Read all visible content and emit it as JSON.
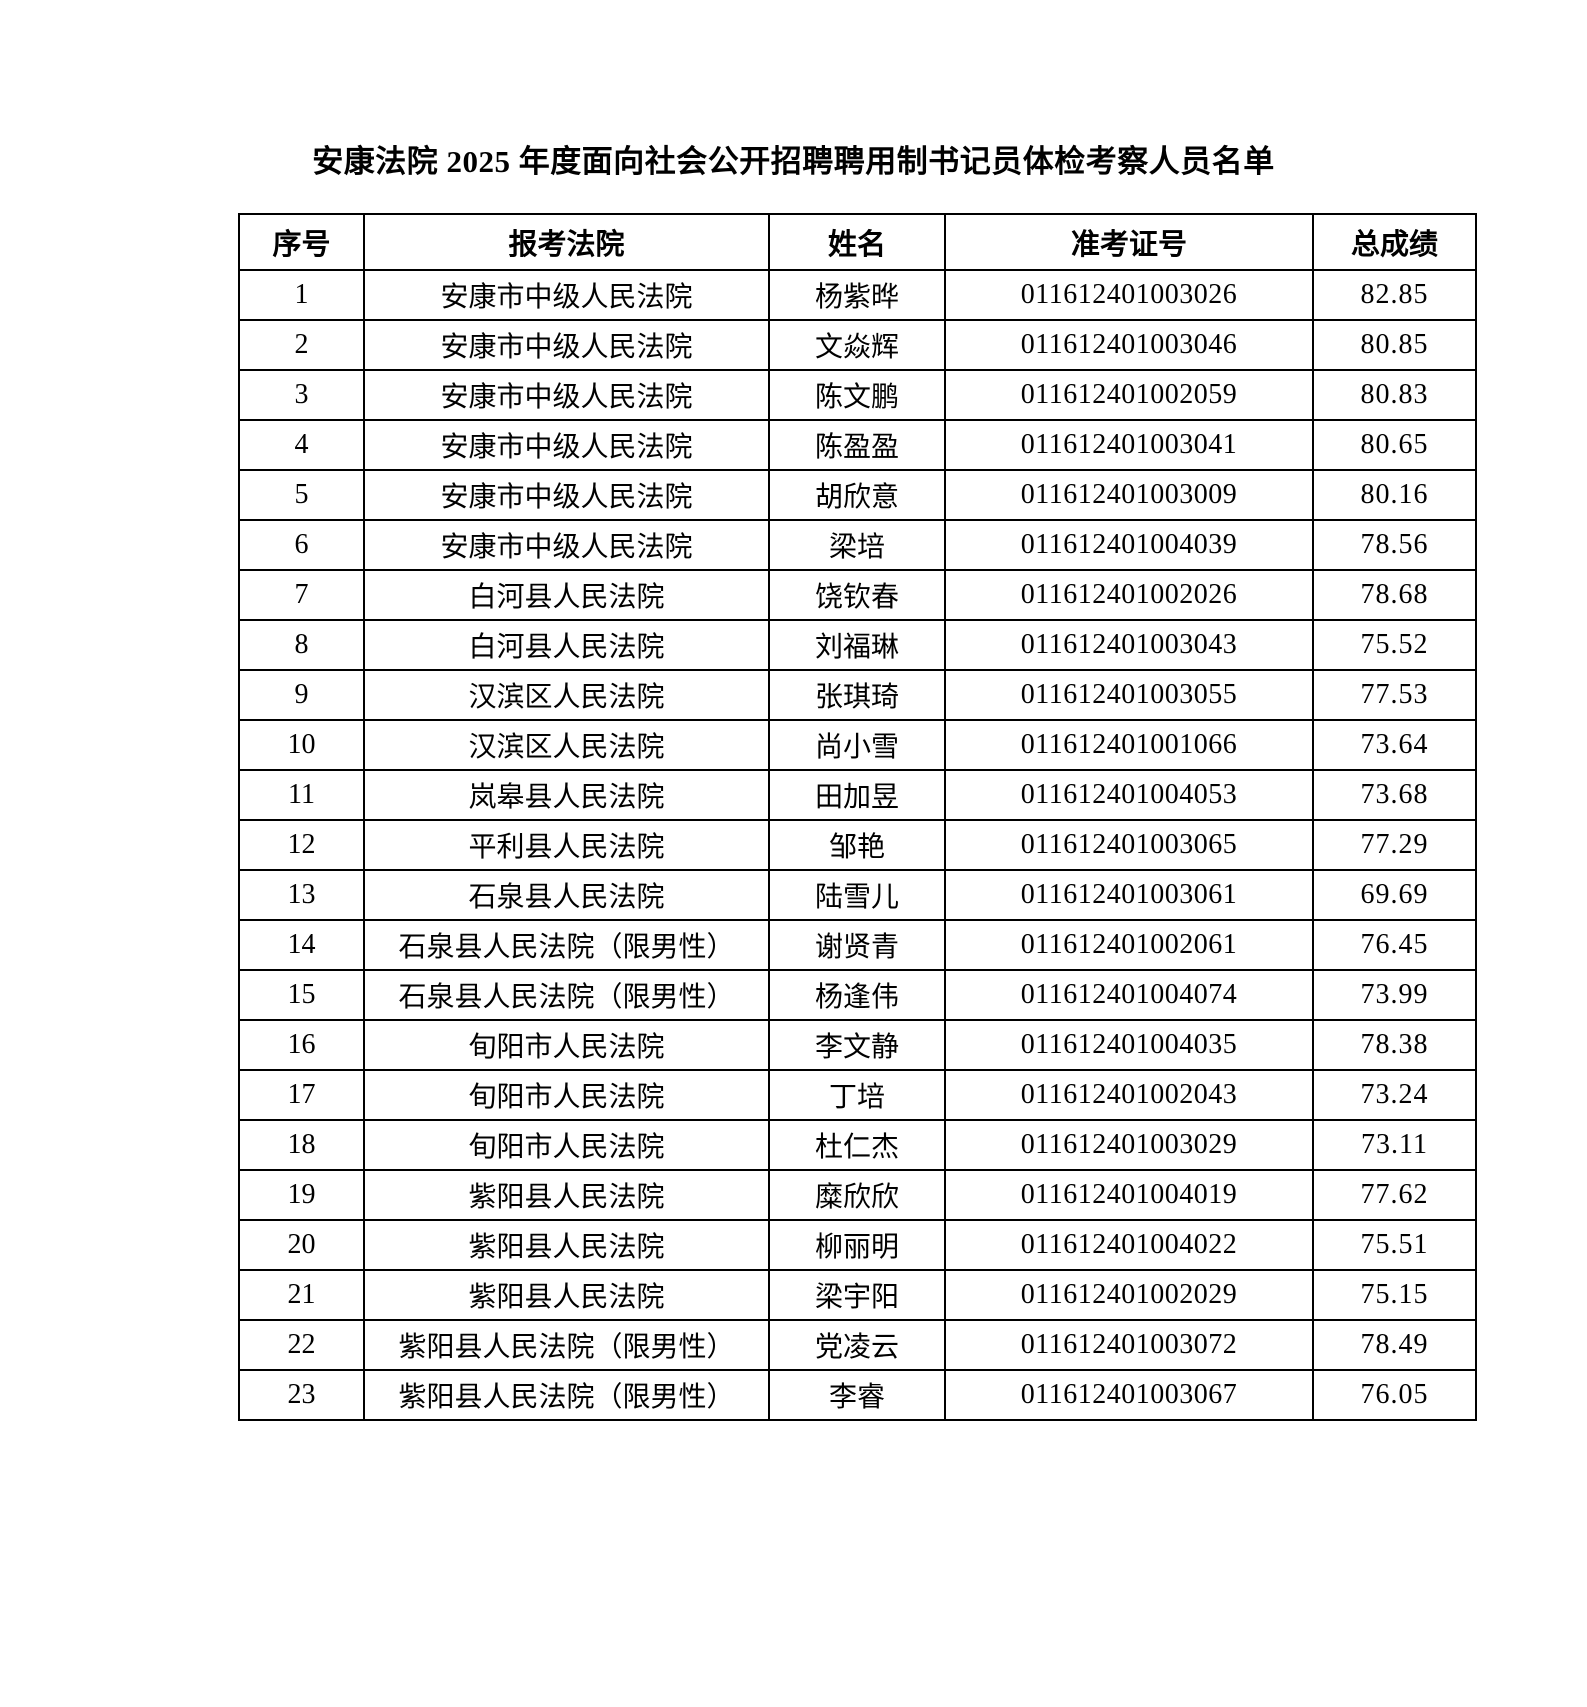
{
  "title": "安康法院 2025 年度面向社会公开招聘聘用制书记员体检考察人员名单",
  "table": {
    "headers": [
      "序号",
      "报考法院",
      "姓名",
      "准考证号",
      "总成绩"
    ],
    "rows": [
      [
        "1",
        "安康市中级人民法院",
        "杨紫晔",
        "011612401003026",
        "82.85"
      ],
      [
        "2",
        "安康市中级人民法院",
        "文焱辉",
        "011612401003046",
        "80.85"
      ],
      [
        "3",
        "安康市中级人民法院",
        "陈文鹏",
        "011612401002059",
        "80.83"
      ],
      [
        "4",
        "安康市中级人民法院",
        "陈盈盈",
        "011612401003041",
        "80.65"
      ],
      [
        "5",
        "安康市中级人民法院",
        "胡欣意",
        "011612401003009",
        "80.16"
      ],
      [
        "6",
        "安康市中级人民法院",
        "梁培",
        "011612401004039",
        "78.56"
      ],
      [
        "7",
        "白河县人民法院",
        "饶钦春",
        "011612401002026",
        "78.68"
      ],
      [
        "8",
        "白河县人民法院",
        "刘福琳",
        "011612401003043",
        "75.52"
      ],
      [
        "9",
        "汉滨区人民法院",
        "张琪琦",
        "011612401003055",
        "77.53"
      ],
      [
        "10",
        "汉滨区人民法院",
        "尚小雪",
        "011612401001066",
        "73.64"
      ],
      [
        "11",
        "岚皋县人民法院",
        "田加昱",
        "011612401004053",
        "73.68"
      ],
      [
        "12",
        "平利县人民法院",
        "邹艳",
        "011612401003065",
        "77.29"
      ],
      [
        "13",
        "石泉县人民法院",
        "陆雪儿",
        "011612401003061",
        "69.69"
      ],
      [
        "14",
        "石泉县人民法院（限男性）",
        "谢贤青",
        "011612401002061",
        "76.45"
      ],
      [
        "15",
        "石泉县人民法院（限男性）",
        "杨逢伟",
        "011612401004074",
        "73.99"
      ],
      [
        "16",
        "旬阳市人民法院",
        "李文静",
        "011612401004035",
        "78.38"
      ],
      [
        "17",
        "旬阳市人民法院",
        "丁培",
        "011612401002043",
        "73.24"
      ],
      [
        "18",
        "旬阳市人民法院",
        "杜仁杰",
        "011612401003029",
        "73.11"
      ],
      [
        "19",
        "紫阳县人民法院",
        "糜欣欣",
        "011612401004019",
        "77.62"
      ],
      [
        "20",
        "紫阳县人民法院",
        "柳丽明",
        "011612401004022",
        "75.51"
      ],
      [
        "21",
        "紫阳县人民法院",
        "梁宇阳",
        "011612401002029",
        "75.15"
      ],
      [
        "22",
        "紫阳县人民法院（限男性）",
        "党凌云",
        "011612401003072",
        "78.49"
      ],
      [
        "23",
        "紫阳县人民法院（限男性）",
        "李睿",
        "011612401003067",
        "76.05"
      ]
    ]
  }
}
